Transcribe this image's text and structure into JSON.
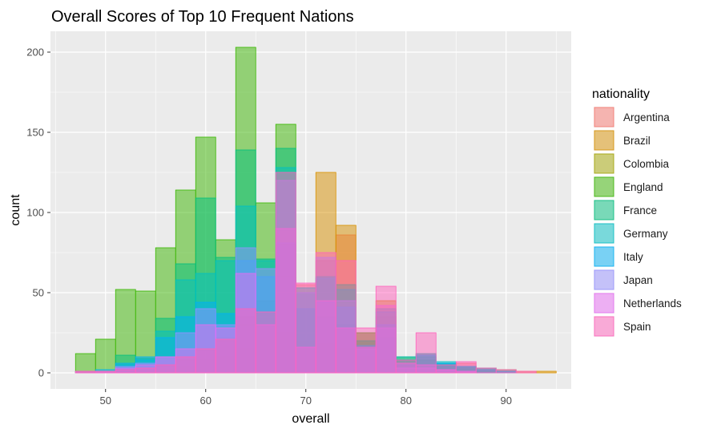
{
  "chart_data": {
    "type": "histogram",
    "title": "Overall Scores of Top 10 Frequent Nations",
    "xlabel": "overall",
    "ylabel": "count",
    "xlim": [
      44.5,
      96.5
    ],
    "ylim": [
      -10,
      213
    ],
    "x_ticks": [
      50,
      60,
      70,
      80,
      90
    ],
    "y_ticks": [
      0,
      50,
      100,
      150,
      200
    ],
    "grid": true,
    "bin_width": 2,
    "x": [
      48,
      50,
      52,
      54,
      56,
      58,
      60,
      62,
      64,
      66,
      68,
      70,
      72,
      74,
      76,
      78,
      80,
      82,
      84,
      86,
      88,
      90,
      92,
      94
    ],
    "legend": {
      "title": "nationality",
      "placement": "right"
    },
    "series": [
      {
        "name": "Argentina",
        "color": "#F8766D",
        "values": [
          1,
          1,
          2,
          2,
          5,
          8,
          15,
          20,
          30,
          35,
          60,
          55,
          70,
          86,
          25,
          35,
          8,
          12,
          5,
          6,
          2,
          1,
          0,
          0
        ]
      },
      {
        "name": "Brazil",
        "color": "#D89000",
        "values": [
          0,
          0,
          1,
          2,
          4,
          8,
          14,
          22,
          35,
          45,
          80,
          40,
          125,
          92,
          20,
          45,
          5,
          5,
          5,
          2,
          1,
          1,
          1,
          1
        ]
      },
      {
        "name": "Colombia",
        "color": "#A3A500",
        "values": [
          0,
          0,
          0,
          1,
          2,
          4,
          8,
          10,
          15,
          20,
          25,
          20,
          18,
          15,
          10,
          8,
          3,
          2,
          1,
          0,
          0,
          0,
          0,
          0
        ]
      },
      {
        "name": "England",
        "color": "#39B600",
        "values": [
          12,
          21,
          52,
          51,
          78,
          114,
          147,
          83,
          203,
          106,
          155,
          40,
          35,
          30,
          25,
          22,
          10,
          8,
          6,
          4,
          3,
          2,
          0,
          0
        ]
      },
      {
        "name": "France",
        "color": "#00BF7D",
        "values": [
          0,
          1,
          11,
          9,
          34,
          68,
          109,
          72,
          139,
          71,
          140,
          50,
          60,
          55,
          20,
          40,
          8,
          10,
          6,
          4,
          2,
          1,
          0,
          0
        ]
      },
      {
        "name": "Germany",
        "color": "#00BFC4",
        "values": [
          0,
          1,
          5,
          8,
          26,
          58,
          62,
          70,
          104,
          70,
          128,
          53,
          59,
          52,
          15,
          38,
          10,
          12,
          7,
          4,
          3,
          1,
          0,
          0
        ]
      },
      {
        "name": "Italy",
        "color": "#00B0F6",
        "values": [
          1,
          2,
          6,
          10,
          22,
          35,
          44,
          37,
          70,
          60,
          81,
          40,
          44,
          41,
          17,
          30,
          5,
          11,
          6,
          4,
          2,
          1,
          0,
          0
        ]
      },
      {
        "name": "Japan",
        "color": "#9590FF",
        "values": [
          0,
          1,
          4,
          6,
          10,
          25,
          40,
          30,
          78,
          65,
          120,
          50,
          72,
          45,
          15,
          28,
          3,
          3,
          2,
          1,
          0,
          0,
          0,
          0
        ]
      },
      {
        "name": "Netherlands",
        "color": "#E76BF3",
        "values": [
          1,
          1,
          3,
          5,
          10,
          15,
          30,
          28,
          62,
          30,
          90,
          16,
          45,
          28,
          16,
          42,
          6,
          5,
          2,
          1,
          0,
          0,
          0,
          0
        ]
      },
      {
        "name": "Spain",
        "color": "#FF62BC",
        "values": [
          1,
          1,
          2,
          3,
          5,
          10,
          15,
          21,
          40,
          38,
          125,
          56,
          75,
          70,
          28,
          54,
          8,
          25,
          5,
          7,
          3,
          2,
          1,
          0
        ]
      }
    ]
  }
}
